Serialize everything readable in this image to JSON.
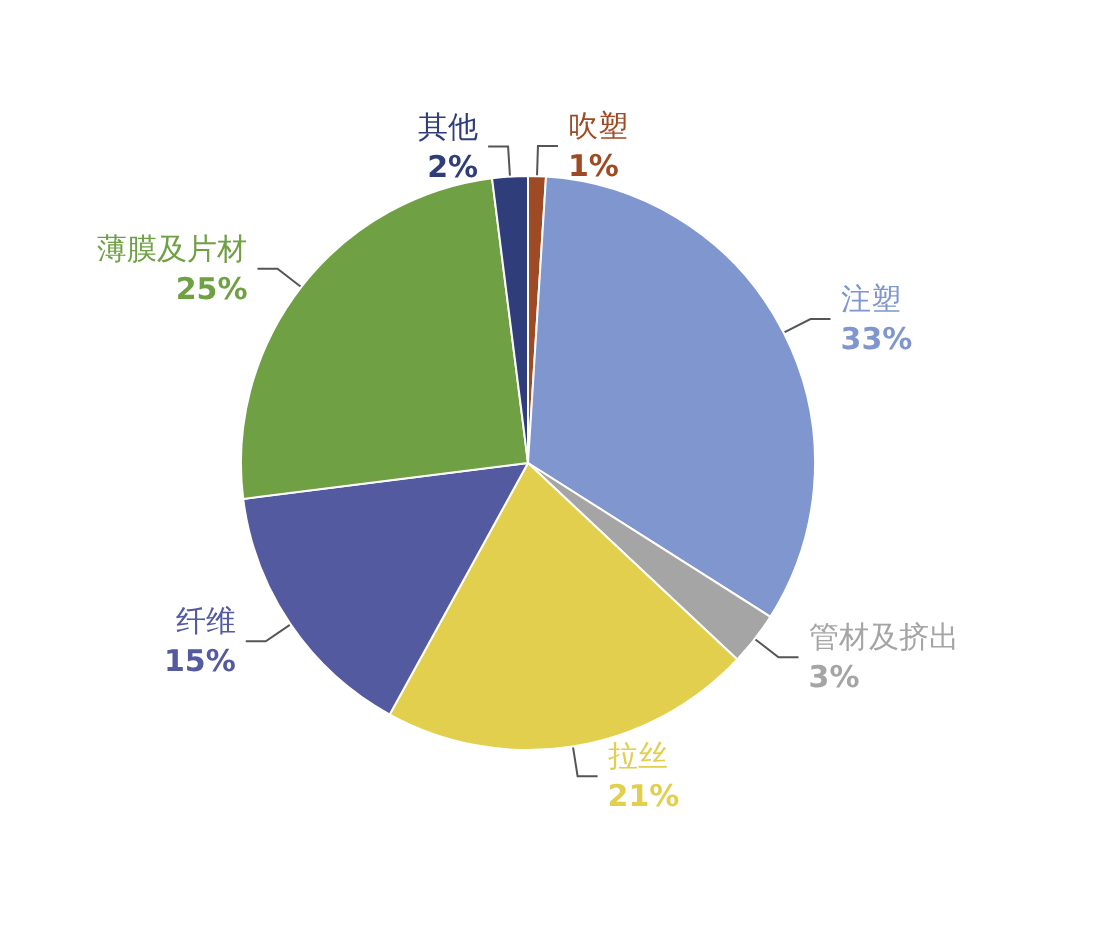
{
  "chart_data": {
    "type": "pie",
    "categories": [
      "吹塑",
      "注塑",
      "管材及挤出",
      "拉丝",
      "纤维",
      "薄膜及片材",
      "其他"
    ],
    "values": [
      1,
      33,
      3,
      21,
      15,
      25,
      2
    ],
    "colors": [
      "#9e4a24",
      "#7f96cf",
      "#a5a5a5",
      "#e3cf4e",
      "#535aa0",
      "#70a044",
      "#2f3e7a"
    ],
    "value_labels": [
      "1%",
      "33%",
      "3%",
      "21%",
      "15%",
      "25%",
      "2%"
    ],
    "legend": false
  }
}
